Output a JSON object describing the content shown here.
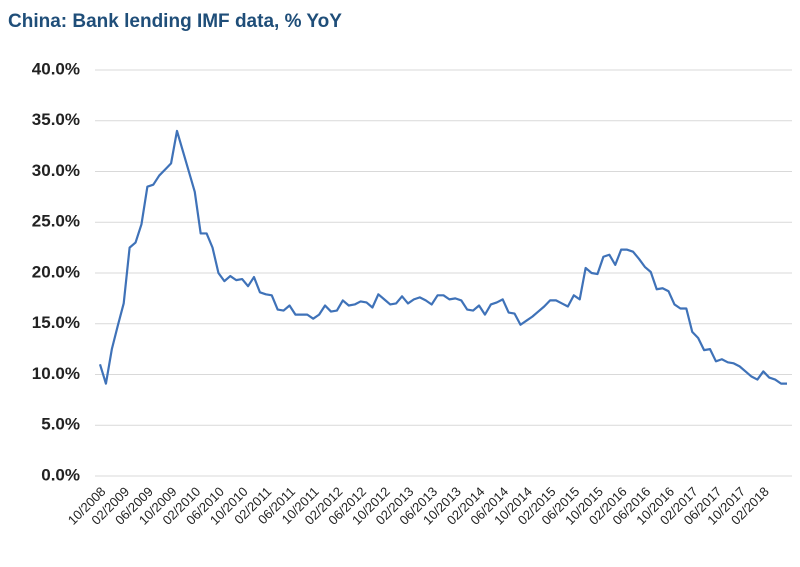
{
  "chart_data": {
    "type": "line",
    "title": "China: Bank lending IMF data, % YoY",
    "categories": [
      "10/2008",
      null,
      null,
      null,
      "02/2009",
      null,
      null,
      null,
      "06/2009",
      null,
      null,
      null,
      "10/2009",
      null,
      null,
      null,
      "02/2010",
      null,
      null,
      null,
      "06/2010",
      null,
      null,
      null,
      "10/2010",
      null,
      null,
      null,
      "02/2011",
      null,
      null,
      null,
      "06/2011",
      null,
      null,
      null,
      "10/2011",
      null,
      null,
      null,
      "02/2012",
      null,
      null,
      null,
      "06/2012",
      null,
      null,
      null,
      "10/2012",
      null,
      null,
      null,
      "02/2013",
      null,
      null,
      null,
      "06/2013",
      null,
      null,
      null,
      "10/2013",
      null,
      null,
      null,
      "02/2014",
      null,
      null,
      null,
      "06/2014",
      null,
      null,
      null,
      "10/2014",
      null,
      null,
      null,
      "02/2015",
      null,
      null,
      null,
      "06/2015",
      null,
      null,
      null,
      "10/2015",
      null,
      null,
      null,
      "02/2016",
      null,
      null,
      null,
      "06/2016",
      null,
      null,
      null,
      "10/2016",
      null,
      null,
      null,
      "02/2017",
      null,
      null,
      null,
      "06/2017",
      null,
      null,
      null,
      "10/2017",
      null,
      null,
      null,
      "02/2018",
      null,
      null,
      null,
      null
    ],
    "series": [
      {
        "name": "Bank lending",
        "color": "#3f72b8",
        "values": [
          11.0,
          9.1,
          12.5,
          14.8,
          17.0,
          22.5,
          23.0,
          24.8,
          28.5,
          28.7,
          29.6,
          30.2,
          30.8,
          34.0,
          32.0,
          30.0,
          28.0,
          23.9,
          23.9,
          22.5,
          20.0,
          19.2,
          19.7,
          19.3,
          19.4,
          18.7,
          19.6,
          18.1,
          17.9,
          17.8,
          16.4,
          16.3,
          16.8,
          15.9,
          15.9,
          15.9,
          15.5,
          15.9,
          16.8,
          16.2,
          16.3,
          17.3,
          16.8,
          16.9,
          17.2,
          17.1,
          16.6,
          17.9,
          17.4,
          16.9,
          17.0,
          17.7,
          17.0,
          17.4,
          17.6,
          17.3,
          16.9,
          17.8,
          17.8,
          17.4,
          17.5,
          17.3,
          16.4,
          16.3,
          16.8,
          15.9,
          16.9,
          17.1,
          17.4,
          16.1,
          16.0,
          14.9,
          15.3,
          15.7,
          16.2,
          16.7,
          17.3,
          17.3,
          17.0,
          16.7,
          17.8,
          17.4,
          20.5,
          20.0,
          19.9,
          21.6,
          21.8,
          20.8,
          22.3,
          22.3,
          22.1,
          21.4,
          20.6,
          20.1,
          18.4,
          18.5,
          18.2,
          16.9,
          16.5,
          16.5,
          14.2,
          13.6,
          12.4,
          12.5,
          11.3,
          11.5,
          11.2,
          11.1,
          10.8,
          10.3,
          9.8,
          9.5,
          10.3,
          9.7,
          9.5,
          9.1,
          9.1
        ]
      }
    ],
    "ylim": [
      0,
      40
    ],
    "yticks": [
      {
        "value": 0,
        "label": "0.0%"
      },
      {
        "value": 5,
        "label": "5.0%"
      },
      {
        "value": 10,
        "label": "10.0%"
      },
      {
        "value": 15,
        "label": "15.0%"
      },
      {
        "value": 20,
        "label": "20.0%"
      },
      {
        "value": 25,
        "label": "25.0%"
      },
      {
        "value": 30,
        "label": "30.0%"
      },
      {
        "value": 35,
        "label": "35.0%"
      },
      {
        "value": 40,
        "label": "40.0%"
      }
    ],
    "grid": true
  }
}
